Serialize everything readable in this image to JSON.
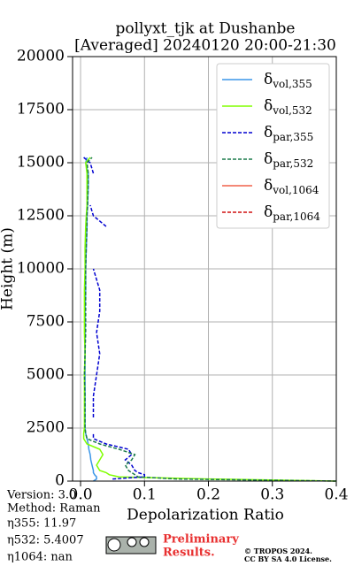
{
  "chart_data": {
    "type": "line",
    "title": "pollyxt_tjk at Dushanbe",
    "subtitle": "[Averaged] 20240120 20:00-21:30",
    "x_label": "Depolarization Ratio",
    "y_label": "Height (m)",
    "heights": [
      0,
      100,
      200,
      300,
      400,
      500,
      750,
      1000,
      1250,
      1500,
      1750,
      2000,
      2250,
      2500,
      3000,
      4000,
      5000,
      6000,
      7000,
      8000,
      9000,
      10000,
      11000,
      12000,
      12500,
      13000,
      14000,
      14500,
      15000,
      15250
    ],
    "series": [
      {
        "name": "δvol,355",
        "color": "#3a96e8",
        "dash": false,
        "values": [
          0.02,
          0.025,
          0.025,
          0.022,
          0.02,
          0.02,
          0.018,
          0.016,
          0.015,
          0.013,
          0.012,
          0.01,
          0.008,
          0.007,
          0.007,
          0.007,
          0.007,
          0.007,
          0.007,
          0.007,
          0.008,
          0.008,
          0.009,
          0.01,
          0.01,
          0.011,
          0.012,
          0.012,
          0.008,
          0.01
        ]
      },
      {
        "name": "δvol,532",
        "color": "#80ff00",
        "dash": false,
        "values": [
          0.4,
          0.2,
          0.06,
          0.045,
          0.04,
          0.03,
          0.025,
          0.03,
          0.035,
          0.03,
          0.01,
          0.005,
          0.005,
          0.006,
          0.006,
          0.006,
          0.006,
          0.007,
          0.006,
          0.006,
          0.006,
          0.007,
          0.007,
          0.008,
          0.009,
          0.01,
          0.01,
          0.01,
          0.008,
          0.015
        ]
      },
      {
        "name": "δpar,355",
        "color": "#0000d0",
        "dash": true,
        "values": [
          null,
          0.05,
          0.1,
          0.1,
          0.09,
          0.085,
          0.08,
          0.07,
          0.08,
          0.075,
          0.04,
          0.02,
          0.02,
          null,
          0.02,
          0.02,
          0.025,
          0.03,
          0.025,
          0.03,
          0.03,
          0.02,
          null,
          0.04,
          0.02,
          0.015,
          null,
          0.02,
          0.015,
          0.005
        ]
      },
      {
        "name": "δpar,532",
        "color": "#1a7a4a",
        "dash": true,
        "values": [
          0.4,
          0.15,
          0.09,
          0.085,
          0.08,
          0.075,
          0.07,
          0.08,
          0.085,
          0.06,
          0.03,
          0.01,
          0.008,
          0.007,
          0.007,
          0.007,
          0.006,
          0.007,
          0.008,
          0.008,
          0.008,
          0.008,
          0.009,
          0.01,
          0.01,
          0.011,
          0.012,
          0.012,
          0.01,
          0.018
        ]
      },
      {
        "name": "δvol,1064",
        "color": "#f0604a",
        "dash": false,
        "values": [
          null,
          null,
          null,
          null,
          null,
          null,
          null,
          null,
          null,
          null,
          null,
          null,
          null,
          null,
          null,
          null,
          null,
          null,
          null,
          null,
          null,
          null,
          null,
          null,
          null,
          null,
          null,
          null,
          null,
          null
        ]
      },
      {
        "name": "δpar,1064",
        "color": "#d01010",
        "dash": true,
        "values": [
          null,
          null,
          null,
          null,
          null,
          null,
          null,
          null,
          null,
          null,
          null,
          null,
          null,
          null,
          null,
          null,
          null,
          null,
          null,
          null,
          null,
          null,
          null,
          null,
          null,
          null,
          null,
          null,
          null,
          null
        ]
      }
    ],
    "xlim": [
      -0.0125,
      0.4
    ],
    "ylim": [
      0,
      20000
    ],
    "xticks": [
      {
        "value": 0,
        "label": "0.0"
      },
      0.1,
      0.2,
      0.3,
      0.4
    ],
    "yticks": [
      0,
      2500,
      5000,
      7500,
      10000,
      12500,
      15000,
      17500,
      20000
    ],
    "grid": true,
    "legend": "upper right"
  },
  "footer": {
    "version": "Version: 3.0",
    "method": "Method: Raman",
    "eta355": "η355:  11.97",
    "eta532": "η532: 5.4007",
    "eta1064": "η1064:    nan",
    "preliminary": [
      "Preliminary",
      "Results."
    ],
    "copyright": [
      "© TROPOS 2024.",
      "CC BY SA 4.0 License."
    ]
  }
}
